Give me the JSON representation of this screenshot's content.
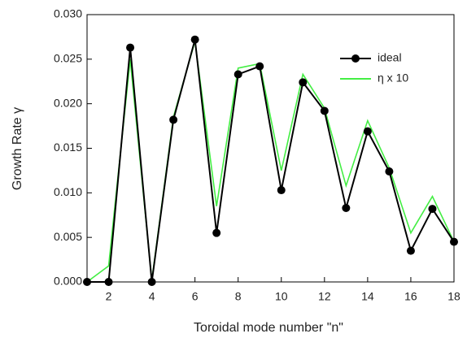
{
  "chart_data": {
    "type": "line",
    "x_label": "Toroidal mode number \"n\"",
    "y_label": "Growth Rate γ",
    "x": [
      1,
      2,
      3,
      4,
      5,
      6,
      7,
      8,
      9,
      10,
      11,
      12,
      13,
      14,
      15,
      16,
      17,
      18
    ],
    "series": [
      {
        "name": "ideal",
        "color": "#000000",
        "marker": true,
        "values": [
          0,
          0,
          0.0263,
          0,
          0.0182,
          0.0272,
          0.0055,
          0.0233,
          0.0242,
          0.0103,
          0.0224,
          0.0192,
          0.0083,
          0.0169,
          0.0124,
          0.0035,
          0.0082,
          0.0045
        ]
      },
      {
        "name": "η x 10",
        "color": "#44ee44",
        "marker": false,
        "values": [
          0,
          0.0018,
          0.025,
          0.0002,
          0.0185,
          0.027,
          0.0085,
          0.024,
          0.0245,
          0.0125,
          0.0233,
          0.0195,
          0.0108,
          0.0181,
          0.0128,
          0.0055,
          0.0096,
          0.0045
        ]
      }
    ],
    "xlim": [
      1,
      18
    ],
    "xticks": [
      2,
      4,
      6,
      8,
      10,
      12,
      14,
      16,
      18
    ],
    "ylim": [
      0,
      0.03
    ],
    "yticks": [
      {
        "value": 0,
        "label": "0.000"
      },
      {
        "value": 0.005,
        "label": "0.005"
      },
      {
        "value": 0.01,
        "label": "0.010"
      },
      {
        "value": 0.015,
        "label": "0.015"
      },
      {
        "value": 0.02,
        "label": "0.020"
      },
      {
        "value": 0.025,
        "label": "0.025"
      },
      {
        "value": 0.03,
        "label": "0.030"
      }
    ],
    "legend": "upper right"
  }
}
